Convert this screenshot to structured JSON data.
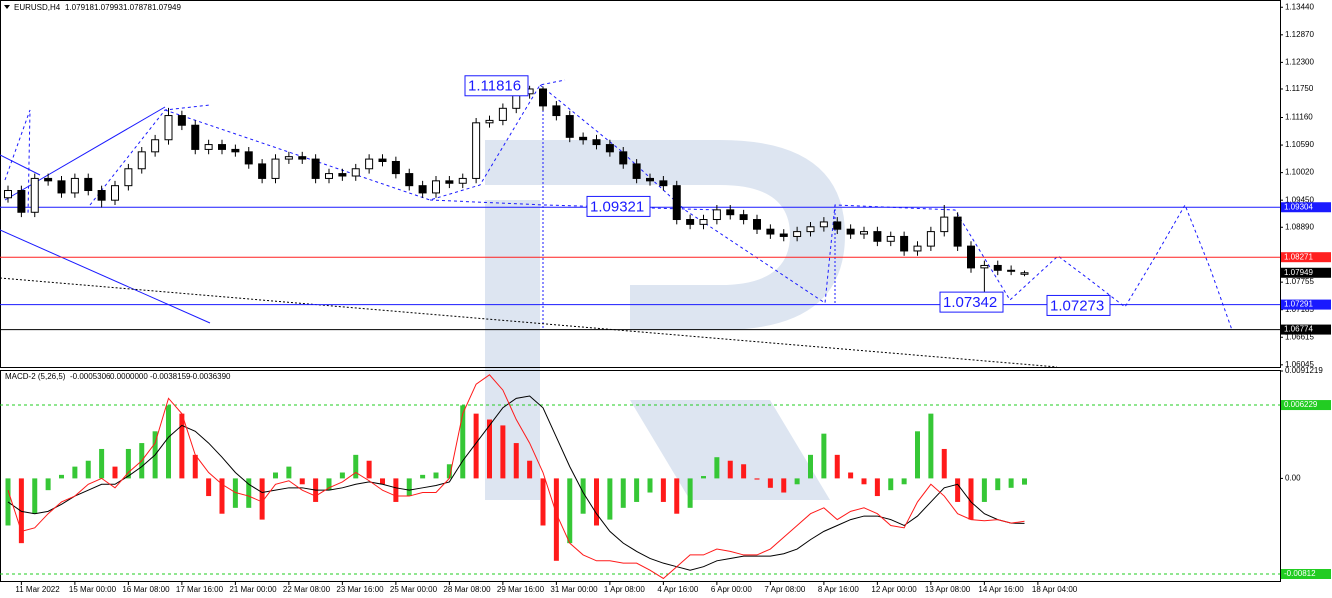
{
  "chart_data": [
    {
      "type": "candlestick",
      "title": "EURUSD,H4",
      "categories": [
        null,
        "11 Mar 2022",
        null,
        null,
        null,
        "15 Mar 00:00",
        null,
        null,
        null,
        "16 Mar 08:00",
        null,
        null,
        null,
        "17 Mar 16:00",
        null,
        null,
        null,
        "21 Mar 00:00",
        null,
        null,
        null,
        "22 Mar 08:00",
        null,
        null,
        null,
        "23 Mar 16:00",
        null,
        null,
        null,
        "25 Mar 00:00",
        null,
        null,
        null,
        "28 Mar 08:00",
        null,
        null,
        null,
        "29 Mar 16:00",
        null,
        null,
        null,
        "31 Mar 00:00",
        null,
        null,
        null,
        "1 Apr 08:00",
        null,
        null,
        null,
        "4 Apr 16:00",
        null,
        null,
        null,
        "6 Apr 00:00",
        null,
        null,
        null,
        "7 Apr 08:00",
        null,
        null,
        null,
        "8 Apr 16:00",
        null,
        null,
        null,
        "12 Apr 00:00",
        null,
        null,
        null,
        "13 Apr 08:00",
        null,
        null,
        null,
        "14 Apr 16:00",
        null,
        null,
        null,
        "18 Apr 04:00"
      ],
      "open": [
        1.095,
        1.0965,
        1.092,
        1.099,
        1.0985,
        1.096,
        1.099,
        1.0965,
        1.0945,
        1.0975,
        1.101,
        1.1045,
        1.107,
        1.112,
        1.11,
        1.105,
        1.106,
        1.105,
        1.1045,
        1.102,
        1.099,
        1.103,
        1.1035,
        1.103,
        1.099,
        1.1,
        1.0995,
        1.101,
        1.103,
        1.1025,
        1.1,
        1.0975,
        1.096,
        1.0985,
        1.098,
        1.099,
        1.1105,
        1.111,
        1.1135,
        1.1165,
        1.1175,
        1.114,
        1.112,
        1.1075,
        1.107,
        1.106,
        1.1045,
        1.102,
        1.099,
        1.0985,
        1.0975,
        1.0905,
        1.0895,
        1.0905,
        1.0925,
        1.0915,
        1.0905,
        1.0885,
        1.0875,
        1.087,
        1.088,
        1.089,
        1.09,
        1.0885,
        1.0875,
        1.088,
        1.086,
        1.087,
        1.084,
        1.085,
        1.088,
        1.091,
        1.085,
        1.0805,
        1.081,
        1.08,
        1.07918,
        null
      ],
      "high": [
        1.0975,
        1.0975,
        1.1,
        1.1,
        1.0995,
        1.1,
        1.1,
        1.0975,
        1.0985,
        1.102,
        1.1055,
        1.108,
        1.1136,
        1.113,
        1.111,
        1.107,
        1.107,
        1.106,
        1.1055,
        1.103,
        1.104,
        1.1045,
        1.1045,
        1.104,
        1.101,
        1.101,
        1.102,
        1.104,
        1.104,
        1.1035,
        1.101,
        1.0985,
        1.0995,
        1.0995,
        1.1,
        1.1115,
        1.112,
        1.1145,
        1.1175,
        1.11816,
        1.118,
        1.115,
        1.113,
        1.1085,
        1.108,
        1.107,
        1.1055,
        1.103,
        1.1,
        1.0995,
        1.0985,
        1.0915,
        1.0915,
        1.0935,
        1.0935,
        1.0925,
        1.0915,
        1.0895,
        1.0885,
        1.089,
        1.09,
        1.091,
        1.091,
        1.0895,
        1.089,
        1.089,
        1.088,
        1.088,
        1.086,
        1.089,
        1.0935,
        1.092,
        1.086,
        1.082,
        1.082,
        1.081,
        1.07993,
        null
      ],
      "low": [
        1.094,
        1.091,
        1.091,
        1.0975,
        1.095,
        1.095,
        1.0955,
        1.093,
        1.0935,
        1.0965,
        1.1,
        1.1035,
        1.106,
        1.109,
        1.104,
        1.104,
        1.104,
        1.1035,
        1.101,
        1.098,
        1.098,
        1.102,
        1.102,
        1.098,
        1.098,
        1.0985,
        1.0985,
        1.1,
        1.1015,
        1.099,
        1.0965,
        1.095,
        1.095,
        1.097,
        1.097,
        1.098,
        1.1095,
        1.11,
        1.1125,
        1.1155,
        1.113,
        1.111,
        1.1065,
        1.106,
        1.105,
        1.1035,
        1.101,
        1.098,
        1.0975,
        1.0965,
        1.0895,
        1.0885,
        1.0885,
        1.0895,
        1.0905,
        1.0895,
        1.0875,
        1.0865,
        1.086,
        1.086,
        1.087,
        1.088,
        1.0875,
        1.0865,
        1.0865,
        1.085,
        1.085,
        1.083,
        1.083,
        1.084,
        1.087,
        1.084,
        1.0795,
        1.07342,
        1.079,
        1.079,
        1.07878,
        null
      ],
      "close": [
        1.0965,
        1.092,
        1.099,
        1.0985,
        1.096,
        1.099,
        1.0965,
        1.0945,
        1.0975,
        1.101,
        1.1045,
        1.107,
        1.112,
        1.11,
        1.105,
        1.106,
        1.105,
        1.1045,
        1.102,
        1.099,
        1.103,
        1.1035,
        1.103,
        1.099,
        1.1,
        1.0995,
        1.101,
        1.103,
        1.1025,
        1.1,
        1.0975,
        1.096,
        1.0985,
        1.098,
        1.099,
        1.1105,
        1.111,
        1.1135,
        1.1165,
        1.1175,
        1.114,
        1.112,
        1.1075,
        1.107,
        1.106,
        1.1045,
        1.102,
        1.099,
        1.0985,
        1.0975,
        1.0905,
        1.0895,
        1.0905,
        1.0925,
        1.0915,
        1.0905,
        1.0885,
        1.0875,
        1.087,
        1.088,
        1.089,
        1.09,
        1.0885,
        1.0875,
        1.088,
        1.086,
        1.087,
        1.084,
        1.085,
        1.088,
        1.091,
        1.085,
        1.0805,
        1.081,
        1.08,
        1.08,
        1.07949,
        null
      ],
      "ylim": [
        1.06,
        1.1359
      ],
      "yticks": [
        {
          "value": 1.1344,
          "label": "1.13440"
        },
        {
          "value": 1.1287,
          "label": "1.12870"
        },
        {
          "value": 1.123,
          "label": "1.12300"
        },
        {
          "value": 1.1175,
          "label": "1.11750"
        },
        {
          "value": 1.1116,
          "label": "1.11160"
        },
        {
          "value": 1.1059,
          "label": "1.10590"
        },
        {
          "value": 1.1002,
          "label": "1.10020"
        },
        {
          "value": 1.0945,
          "label": "1.09450"
        },
        {
          "value": 1.0889,
          "label": "1.08890"
        },
        1.07755,
        1.07185,
        1.06615,
        1.06045
      ],
      "levels": [
        {
          "value": 1.09304,
          "color": "#1a1aff"
        },
        {
          "value": 1.08271,
          "color": "#ff2020"
        },
        {
          "value": 1.07291,
          "color": "#1a1aff"
        },
        {
          "value": 1.06774,
          "color": "#000000"
        }
      ],
      "annotations": [
        1.11816,
        1.09321,
        1.07342,
        1.07273
      ]
    },
    {
      "type": "macd",
      "title": "MACD-2 (5,26,5)",
      "header_values": [
        -0.0005306,
        {
          "value": 0,
          "label": "0.0000000"
        },
        -0.0038159,
        {
          "value": -0.003639,
          "label": "-0.0036390"
        }
      ],
      "histogram": [
        -0.004,
        -0.0055,
        -0.003,
        -0.001,
        0.0003,
        0.001,
        0.0015,
        0.0025,
        0.001,
        0.0025,
        0.003,
        0.004,
        0.0062,
        0.0055,
        0.002,
        -0.0015,
        -0.003,
        -0.0025,
        -0.0025,
        -0.0035,
        0.0005,
        0.001,
        -0.0005,
        -0.002,
        -0.001,
        0.0005,
        0.002,
        0.0015,
        -0.0005,
        -0.002,
        -0.0015,
        0.0003,
        0.0005,
        0.0012,
        0.0062,
        0.0055,
        0.005,
        0.0045,
        0.003,
        0.0015,
        -0.004,
        -0.007,
        -0.0055,
        -0.003,
        -0.004,
        -0.0035,
        -0.0025,
        -0.002,
        -0.0012,
        -0.002,
        -0.003,
        -0.0025,
        0.0002,
        0.0018,
        0.0015,
        0.0012,
        -0.0001,
        -0.0008,
        -0.0012,
        -0.0005,
        0.002,
        0.0038,
        0.002,
        0.0005,
        -0.0005,
        -0.0015,
        -0.001,
        -0.0005,
        0.004,
        0.0055,
        0.0025,
        -0.002,
        -0.0035,
        -0.002,
        -0.001,
        -0.0008,
        -0.0005306,
        null
      ],
      "up_color": "#36c736",
      "down_color": "#ff1a1a",
      "signal": [
        -0.002,
        -0.0028,
        -0.003,
        -0.0028,
        -0.0022,
        -0.0015,
        -0.001,
        -0.0005,
        -0.0005,
        0.0002,
        0.001,
        0.002,
        0.0035,
        0.0045,
        0.004,
        0.003,
        0.0018,
        0.0005,
        -0.0005,
        -0.0012,
        -0.001,
        -0.0008,
        -0.0008,
        -0.001,
        -0.001,
        -0.0008,
        -0.0005,
        -0.0003,
        -0.0005,
        -0.0008,
        -0.001,
        -0.0008,
        -0.0006,
        -0.0003,
        0.0015,
        0.003,
        0.0045,
        0.006,
        0.0068,
        0.007,
        0.006,
        0.0035,
        0.001,
        -0.0012,
        -0.003,
        -0.0045,
        -0.0055,
        -0.0062,
        -0.0068,
        -0.0072,
        -0.0075,
        -0.0078,
        -0.0075,
        -0.007,
        -0.0068,
        -0.0066,
        -0.0066,
        -0.0066,
        -0.0064,
        -0.006,
        -0.0052,
        -0.0045,
        -0.004,
        -0.0035,
        -0.0032,
        -0.0032,
        -0.0035,
        -0.004,
        -0.0032,
        -0.002,
        -0.0008,
        -0.0005,
        -0.002,
        -0.003,
        -0.0035,
        -0.0038,
        -0.0038159,
        null
      ],
      "signal_color": "#000000",
      "main": [
        -0.001,
        -0.0045,
        -0.0042,
        -0.003,
        -0.002,
        -0.0015,
        -0.0005,
        0.0,
        -0.0008,
        0.0005,
        0.0015,
        0.003,
        0.0068,
        0.0055,
        0.002,
        0.0005,
        -0.0005,
        -0.0012,
        -0.0015,
        -0.002,
        -0.0005,
        -0.0002,
        -0.001,
        -0.0015,
        -0.0008,
        -0.0003,
        0.0005,
        -0.0002,
        -0.001,
        -0.0015,
        -0.0015,
        -0.0012,
        -0.0012,
        0.0,
        0.0055,
        0.008,
        0.0088,
        0.0075,
        0.005,
        0.003,
        0.0005,
        -0.003,
        -0.0055,
        -0.0065,
        -0.007,
        -0.007,
        -0.0072,
        -0.0072,
        -0.0078,
        -0.0085,
        -0.0075,
        -0.0065,
        -0.0065,
        -0.006,
        -0.0062,
        -0.0065,
        -0.0065,
        -0.006,
        -0.005,
        -0.004,
        -0.003,
        -0.0025,
        -0.0035,
        -0.0028,
        -0.0025,
        -0.003,
        -0.004,
        -0.0042,
        -0.002,
        -0.0005,
        -0.0015,
        -0.003,
        -0.0035,
        -0.0036,
        -0.0035,
        -0.0038,
        -0.003639,
        null
      ],
      "main_color": "#ff1a1a",
      "ylim": [
        -0.0088,
        0.0091219
      ],
      "yticks": [
        0.0091219,
        {
          "value": 0,
          "label": "0.00"
        }
      ],
      "levels": [
        {
          "value": 0.006229,
          "color": "#22cc22"
        },
        {
          "value": -0.00812,
          "color": "#22cc22"
        }
      ]
    }
  ]
}
